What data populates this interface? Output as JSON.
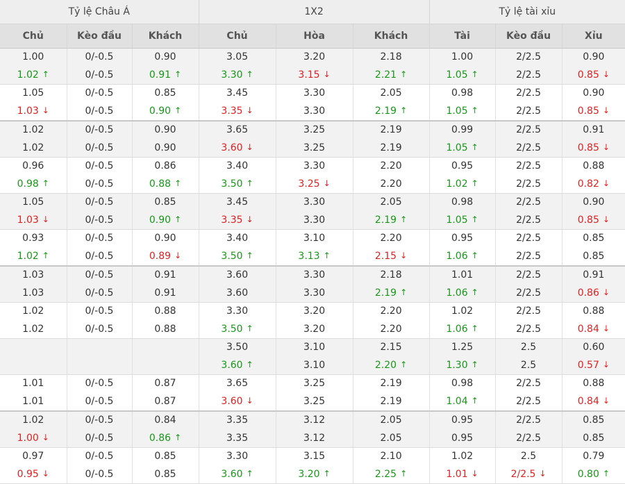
{
  "header": {
    "groups": [
      "Tỷ lệ Châu Á",
      "1X2",
      "Tỷ lệ tài xỉu"
    ],
    "columns": [
      "Chủ",
      "Kèo đầu",
      "Khách",
      "Chủ",
      "Hòa",
      "Khách",
      "Tài",
      "Kèo đầu",
      "Xỉu"
    ]
  },
  "icons": {
    "up": "arrow-up-icon",
    "down": "arrow-down-icon"
  },
  "colors": {
    "up": "#179917",
    "down": "#e22121"
  },
  "rows": [
    {
      "shade": true,
      "thick": false,
      "top": [
        [
          "1.00",
          ""
        ],
        [
          "0/-0.5",
          ""
        ],
        [
          "0.90",
          ""
        ],
        [
          "3.05",
          ""
        ],
        [
          "3.20",
          ""
        ],
        [
          "2.18",
          ""
        ],
        [
          "1.00",
          ""
        ],
        [
          "2/2.5",
          ""
        ],
        [
          "0.90",
          ""
        ]
      ],
      "bot": [
        [
          "1.02",
          "up"
        ],
        [
          "0/-0.5",
          ""
        ],
        [
          "0.91",
          "up"
        ],
        [
          "3.30",
          "up"
        ],
        [
          "3.15",
          "down"
        ],
        [
          "2.21",
          "up"
        ],
        [
          "1.05",
          "up"
        ],
        [
          "2/2.5",
          ""
        ],
        [
          "0.85",
          "down"
        ]
      ]
    },
    {
      "shade": false,
      "thick": true,
      "top": [
        [
          "1.05",
          ""
        ],
        [
          "0/-0.5",
          ""
        ],
        [
          "0.85",
          ""
        ],
        [
          "3.45",
          ""
        ],
        [
          "3.30",
          ""
        ],
        [
          "2.05",
          ""
        ],
        [
          "0.98",
          ""
        ],
        [
          "2/2.5",
          ""
        ],
        [
          "0.90",
          ""
        ]
      ],
      "bot": [
        [
          "1.03",
          "down"
        ],
        [
          "0/-0.5",
          ""
        ],
        [
          "0.90",
          "up"
        ],
        [
          "3.35",
          "down"
        ],
        [
          "3.30",
          ""
        ],
        [
          "2.19",
          "up"
        ],
        [
          "1.05",
          "up"
        ],
        [
          "2/2.5",
          ""
        ],
        [
          "0.85",
          "down"
        ]
      ]
    },
    {
      "shade": true,
      "thick": false,
      "top": [
        [
          "1.02",
          ""
        ],
        [
          "0/-0.5",
          ""
        ],
        [
          "0.90",
          ""
        ],
        [
          "3.65",
          ""
        ],
        [
          "3.25",
          ""
        ],
        [
          "2.19",
          ""
        ],
        [
          "0.99",
          ""
        ],
        [
          "2/2.5",
          ""
        ],
        [
          "0.91",
          ""
        ]
      ],
      "bot": [
        [
          "1.02",
          ""
        ],
        [
          "0/-0.5",
          ""
        ],
        [
          "0.90",
          ""
        ],
        [
          "3.60",
          "down"
        ],
        [
          "3.25",
          ""
        ],
        [
          "2.19",
          ""
        ],
        [
          "1.05",
          "up"
        ],
        [
          "2/2.5",
          ""
        ],
        [
          "0.85",
          "down"
        ]
      ]
    },
    {
      "shade": false,
      "thick": false,
      "top": [
        [
          "0.96",
          ""
        ],
        [
          "0/-0.5",
          ""
        ],
        [
          "0.86",
          ""
        ],
        [
          "3.40",
          ""
        ],
        [
          "3.30",
          ""
        ],
        [
          "2.20",
          ""
        ],
        [
          "0.95",
          ""
        ],
        [
          "2/2.5",
          ""
        ],
        [
          "0.88",
          ""
        ]
      ],
      "bot": [
        [
          "0.98",
          "up"
        ],
        [
          "0/-0.5",
          ""
        ],
        [
          "0.88",
          "up"
        ],
        [
          "3.50",
          "up"
        ],
        [
          "3.25",
          "down"
        ],
        [
          "2.20",
          ""
        ],
        [
          "1.02",
          "up"
        ],
        [
          "2/2.5",
          ""
        ],
        [
          "0.82",
          "down"
        ]
      ]
    },
    {
      "shade": true,
      "thick": false,
      "top": [
        [
          "1.05",
          ""
        ],
        [
          "0/-0.5",
          ""
        ],
        [
          "0.85",
          ""
        ],
        [
          "3.45",
          ""
        ],
        [
          "3.30",
          ""
        ],
        [
          "2.05",
          ""
        ],
        [
          "0.98",
          ""
        ],
        [
          "2/2.5",
          ""
        ],
        [
          "0.90",
          ""
        ]
      ],
      "bot": [
        [
          "1.03",
          "down"
        ],
        [
          "0/-0.5",
          ""
        ],
        [
          "0.90",
          "up"
        ],
        [
          "3.35",
          "down"
        ],
        [
          "3.30",
          ""
        ],
        [
          "2.19",
          "up"
        ],
        [
          "1.05",
          "up"
        ],
        [
          "2/2.5",
          ""
        ],
        [
          "0.85",
          "down"
        ]
      ]
    },
    {
      "shade": false,
      "thick": true,
      "top": [
        [
          "0.93",
          ""
        ],
        [
          "0/-0.5",
          ""
        ],
        [
          "0.90",
          ""
        ],
        [
          "3.40",
          ""
        ],
        [
          "3.10",
          ""
        ],
        [
          "2.20",
          ""
        ],
        [
          "0.95",
          ""
        ],
        [
          "2/2.5",
          ""
        ],
        [
          "0.85",
          ""
        ]
      ],
      "bot": [
        [
          "1.02",
          "up"
        ],
        [
          "0/-0.5",
          ""
        ],
        [
          "0.89",
          "down"
        ],
        [
          "3.50",
          "up"
        ],
        [
          "3.13",
          "up"
        ],
        [
          "2.15",
          "down"
        ],
        [
          "1.06",
          "up"
        ],
        [
          "2/2.5",
          ""
        ],
        [
          "0.85",
          ""
        ]
      ]
    },
    {
      "shade": true,
      "thick": false,
      "top": [
        [
          "1.03",
          ""
        ],
        [
          "0/-0.5",
          ""
        ],
        [
          "0.91",
          ""
        ],
        [
          "3.60",
          ""
        ],
        [
          "3.30",
          ""
        ],
        [
          "2.18",
          ""
        ],
        [
          "1.01",
          ""
        ],
        [
          "2/2.5",
          ""
        ],
        [
          "0.91",
          ""
        ]
      ],
      "bot": [
        [
          "1.03",
          ""
        ],
        [
          "0/-0.5",
          ""
        ],
        [
          "0.91",
          ""
        ],
        [
          "3.60",
          ""
        ],
        [
          "3.30",
          ""
        ],
        [
          "2.19",
          "up"
        ],
        [
          "1.06",
          "up"
        ],
        [
          "2/2.5",
          ""
        ],
        [
          "0.86",
          "down"
        ]
      ]
    },
    {
      "shade": false,
      "thick": false,
      "top": [
        [
          "1.02",
          ""
        ],
        [
          "0/-0.5",
          ""
        ],
        [
          "0.88",
          ""
        ],
        [
          "3.30",
          ""
        ],
        [
          "3.20",
          ""
        ],
        [
          "2.20",
          ""
        ],
        [
          "1.02",
          ""
        ],
        [
          "2/2.5",
          ""
        ],
        [
          "0.88",
          ""
        ]
      ],
      "bot": [
        [
          "1.02",
          ""
        ],
        [
          "0/-0.5",
          ""
        ],
        [
          "0.88",
          ""
        ],
        [
          "3.50",
          "up"
        ],
        [
          "3.20",
          ""
        ],
        [
          "2.20",
          ""
        ],
        [
          "1.06",
          "up"
        ],
        [
          "2/2.5",
          ""
        ],
        [
          "0.84",
          "down"
        ]
      ]
    },
    {
      "shade": true,
      "thick": false,
      "top": [
        [
          "",
          ""
        ],
        [
          "",
          ""
        ],
        [
          "",
          ""
        ],
        [
          "3.50",
          ""
        ],
        [
          "3.10",
          ""
        ],
        [
          "2.15",
          ""
        ],
        [
          "1.25",
          ""
        ],
        [
          "2.5",
          ""
        ],
        [
          "0.60",
          ""
        ]
      ],
      "bot": [
        [
          "",
          ""
        ],
        [
          "",
          ""
        ],
        [
          "",
          ""
        ],
        [
          "3.60",
          "up"
        ],
        [
          "3.10",
          ""
        ],
        [
          "2.20",
          "up"
        ],
        [
          "1.30",
          "up"
        ],
        [
          "2.5",
          ""
        ],
        [
          "0.57",
          "down"
        ]
      ]
    },
    {
      "shade": false,
      "thick": true,
      "top": [
        [
          "1.01",
          ""
        ],
        [
          "0/-0.5",
          ""
        ],
        [
          "0.87",
          ""
        ],
        [
          "3.65",
          ""
        ],
        [
          "3.25",
          ""
        ],
        [
          "2.19",
          ""
        ],
        [
          "0.98",
          ""
        ],
        [
          "2/2.5",
          ""
        ],
        [
          "0.88",
          ""
        ]
      ],
      "bot": [
        [
          "1.01",
          ""
        ],
        [
          "0/-0.5",
          ""
        ],
        [
          "0.87",
          ""
        ],
        [
          "3.60",
          "down"
        ],
        [
          "3.25",
          ""
        ],
        [
          "2.19",
          ""
        ],
        [
          "1.04",
          "up"
        ],
        [
          "2/2.5",
          ""
        ],
        [
          "0.84",
          "down"
        ]
      ]
    },
    {
      "shade": true,
      "thick": false,
      "top": [
        [
          "1.02",
          ""
        ],
        [
          "0/-0.5",
          ""
        ],
        [
          "0.84",
          ""
        ],
        [
          "3.35",
          ""
        ],
        [
          "3.12",
          ""
        ],
        [
          "2.05",
          ""
        ],
        [
          "0.95",
          ""
        ],
        [
          "2/2.5",
          ""
        ],
        [
          "0.85",
          ""
        ]
      ],
      "bot": [
        [
          "1.00",
          "down"
        ],
        [
          "0/-0.5",
          ""
        ],
        [
          "0.86",
          "up"
        ],
        [
          "3.35",
          ""
        ],
        [
          "3.12",
          ""
        ],
        [
          "2.05",
          ""
        ],
        [
          "0.95",
          ""
        ],
        [
          "2/2.5",
          ""
        ],
        [
          "0.85",
          ""
        ]
      ]
    },
    {
      "shade": false,
      "thick": false,
      "top": [
        [
          "0.97",
          ""
        ],
        [
          "0/-0.5",
          ""
        ],
        [
          "0.85",
          ""
        ],
        [
          "3.30",
          ""
        ],
        [
          "3.15",
          ""
        ],
        [
          "2.10",
          ""
        ],
        [
          "1.02",
          ""
        ],
        [
          "2.5",
          ""
        ],
        [
          "0.79",
          ""
        ]
      ],
      "bot": [
        [
          "0.95",
          "down"
        ],
        [
          "0/-0.5",
          ""
        ],
        [
          "0.85",
          ""
        ],
        [
          "3.60",
          "up"
        ],
        [
          "3.20",
          "up"
        ],
        [
          "2.25",
          "up"
        ],
        [
          "1.01",
          "down"
        ],
        [
          "2/2.5",
          "down"
        ],
        [
          "0.80",
          "up"
        ]
      ]
    }
  ]
}
